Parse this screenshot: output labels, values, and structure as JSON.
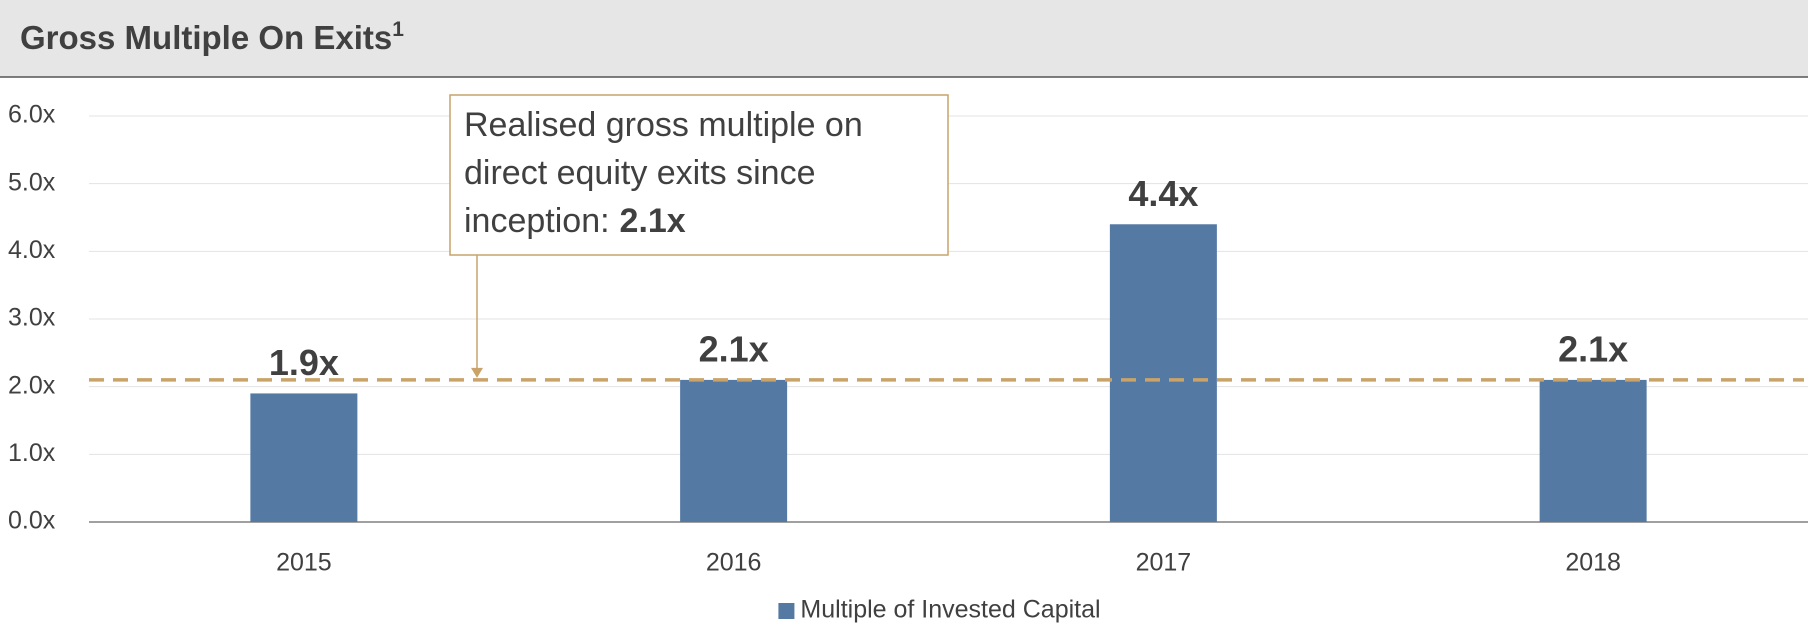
{
  "chart_data": {
    "type": "bar",
    "title": "Gross Multiple On Exits",
    "title_superscript": "1",
    "categories": [
      "2015",
      "2016",
      "2017",
      "2018"
    ],
    "values": [
      1.9,
      2.1,
      4.4,
      2.1
    ],
    "value_labels": [
      "1.9x",
      "2.1x",
      "4.4x",
      "2.1x"
    ],
    "series_name": "Multiple of Invested Capital",
    "color": "#5479a3",
    "ylim": [
      0,
      6
    ],
    "yticks": [
      {
        "value": 0,
        "label": "0.0x"
      },
      {
        "value": 1,
        "label": "1.0x"
      },
      {
        "value": 2,
        "label": "2.0x"
      },
      {
        "value": 3,
        "label": "3.0x"
      },
      {
        "value": 4,
        "label": "4.0x"
      },
      {
        "value": 5,
        "label": "5.0x"
      },
      {
        "value": 6,
        "label": "6.0x"
      }
    ],
    "grid": true,
    "reference_line": {
      "value": 2.1,
      "color": "#c9a36a"
    },
    "annotation": {
      "lines": [
        "Realised gross multiple on",
        "direct equity exits since",
        "inception:"
      ],
      "highlight": "2.1x"
    }
  }
}
